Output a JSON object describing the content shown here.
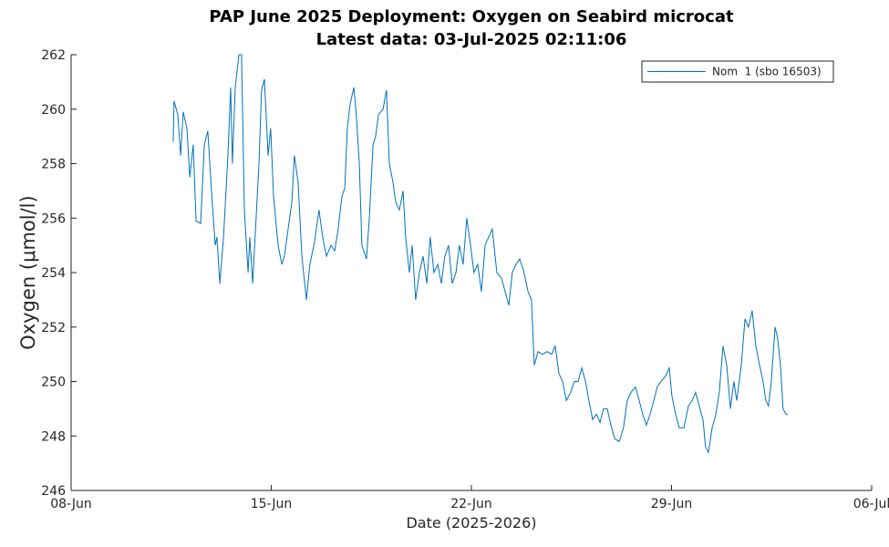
{
  "chart_data": {
    "type": "line",
    "title": [
      "PAP June 2025 Deployment:  Oxygen on Seabird microcat",
      "Latest data: 03-Jul-2025 02:11:06"
    ],
    "xlabel": "Date (2025-2026)",
    "ylabel": "Oxygen (μmol/l)",
    "xlim": [
      8,
      36
    ],
    "xticks": [
      {
        "value": 8,
        "label": "08-Jun"
      },
      {
        "value": 15,
        "label": "15-Jun"
      },
      {
        "value": 22,
        "label": "22-Jun"
      },
      {
        "value": 29,
        "label": "29-Jun"
      },
      {
        "value": 36,
        "label": "06-Jul"
      }
    ],
    "ylim": [
      246,
      262
    ],
    "yticks": [
      246,
      248,
      250,
      252,
      254,
      256,
      258,
      260,
      262
    ],
    "grid": false,
    "legend": "upper right",
    "x": [
      11.57,
      11.6,
      11.73,
      11.83,
      11.92,
      12.05,
      12.15,
      12.27,
      12.37,
      12.53,
      12.66,
      12.78,
      12.91,
      13.04,
      13.1,
      13.2,
      13.33,
      13.48,
      13.58,
      13.64,
      13.74,
      13.87,
      13.96,
      14.06,
      14.19,
      14.25,
      14.35,
      14.47,
      14.57,
      14.66,
      14.76,
      14.89,
      14.98,
      15.08,
      15.24,
      15.37,
      15.46,
      15.59,
      15.72,
      15.81,
      15.94,
      16.07,
      16.23,
      16.35,
      16.51,
      16.67,
      16.8,
      16.93,
      17.09,
      17.22,
      17.34,
      17.47,
      17.57,
      17.66,
      17.76,
      17.89,
      17.98,
      18.08,
      18.17,
      18.33,
      18.43,
      18.56,
      18.65,
      18.75,
      18.91,
      19.03,
      19.13,
      19.26,
      19.35,
      19.48,
      19.61,
      19.7,
      19.83,
      19.93,
      20.05,
      20.18,
      20.31,
      20.44,
      20.56,
      20.69,
      20.82,
      20.95,
      21.07,
      21.2,
      21.33,
      21.46,
      21.58,
      21.71,
      21.84,
      21.97,
      22.09,
      22.22,
      22.35,
      22.48,
      22.6,
      22.73,
      22.89,
      23.05,
      23.18,
      23.31,
      23.43,
      23.56,
      23.69,
      23.82,
      23.98,
      24.1,
      24.2,
      24.33,
      24.49,
      24.65,
      24.81,
      24.93,
      25.06,
      25.19,
      25.32,
      25.47,
      25.6,
      25.73,
      25.86,
      25.99,
      26.11,
      26.24,
      26.37,
      26.5,
      26.62,
      26.75,
      26.88,
      27.01,
      27.17,
      27.32,
      27.45,
      27.58,
      27.74,
      27.87,
      27.99,
      28.12,
      28.25,
      28.38,
      28.5,
      28.63,
      28.79,
      28.92,
      29.01,
      29.14,
      29.27,
      29.43,
      29.59,
      29.72,
      29.84,
      29.97,
      30.1,
      30.19,
      30.29,
      30.42,
      30.55,
      30.67,
      30.8,
      30.93,
      31.06,
      31.18,
      31.28,
      31.44,
      31.57,
      31.69,
      31.82,
      31.95,
      32.08,
      32.2,
      32.3,
      32.39,
      32.49,
      32.62,
      32.71,
      32.81,
      32.9,
      33.0,
      33.06
    ],
    "series": [
      {
        "name": "Nom  1 (sbo 16503)",
        "color": "#0072bd",
        "values": [
          258.8,
          260.3,
          259.8,
          258.3,
          259.9,
          259.3,
          257.5,
          258.7,
          255.9,
          255.8,
          258.7,
          259.2,
          257.0,
          255.0,
          255.3,
          253.6,
          255.3,
          258.2,
          260.8,
          258.0,
          260.8,
          262.0,
          262.0,
          256.3,
          254.0,
          255.3,
          253.6,
          256.0,
          258.0,
          260.7,
          261.1,
          258.3,
          259.3,
          256.8,
          255.0,
          254.3,
          254.6,
          255.6,
          256.6,
          258.3,
          257.3,
          254.6,
          253.0,
          254.3,
          255.1,
          256.3,
          255.3,
          254.6,
          255.0,
          254.8,
          255.6,
          256.8,
          257.1,
          259.3,
          260.2,
          260.8,
          259.7,
          258.0,
          255.0,
          254.5,
          256.0,
          258.7,
          259.0,
          259.8,
          260.0,
          260.7,
          258.0,
          257.3,
          256.6,
          256.3,
          257.0,
          255.3,
          254.0,
          255.0,
          253.0,
          254.0,
          254.6,
          253.6,
          255.3,
          254.0,
          254.3,
          253.6,
          254.6,
          255.0,
          253.6,
          254.0,
          255.0,
          254.3,
          256.0,
          255.0,
          254.0,
          254.3,
          253.3,
          255.0,
          255.3,
          255.6,
          254.0,
          253.8,
          253.3,
          252.8,
          254.0,
          254.3,
          254.5,
          254.1,
          253.3,
          253.0,
          250.6,
          251.1,
          251.0,
          251.1,
          251.0,
          251.3,
          250.3,
          250.0,
          249.3,
          249.6,
          250.0,
          250.0,
          250.5,
          250.0,
          249.3,
          248.6,
          248.8,
          248.5,
          249.0,
          249.0,
          248.4,
          247.9,
          247.8,
          248.3,
          249.3,
          249.6,
          249.8,
          249.3,
          248.8,
          248.4,
          248.8,
          249.3,
          249.8,
          250.0,
          250.2,
          250.5,
          249.5,
          248.8,
          248.3,
          248.3,
          249.1,
          249.3,
          249.6,
          249.1,
          248.6,
          247.6,
          247.4,
          248.3,
          248.8,
          249.6,
          251.3,
          250.6,
          249.0,
          250.0,
          249.3,
          250.6,
          252.3,
          252.0,
          252.6,
          251.3,
          250.6,
          250.0,
          249.3,
          249.1,
          250.0,
          252.0,
          251.6,
          250.6,
          249.0,
          248.8,
          248.8
        ]
      }
    ]
  }
}
